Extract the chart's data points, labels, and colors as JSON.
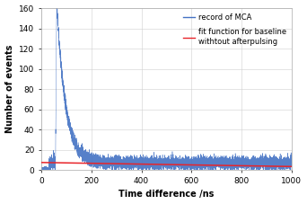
{
  "xlabel": "Time difference /ns",
  "ylabel": "Number of events",
  "xlim": [
    0,
    1000
  ],
  "ylim": [
    0,
    160
  ],
  "yticks": [
    0,
    20,
    40,
    60,
    80,
    100,
    120,
    140,
    160
  ],
  "xticks": [
    0,
    200,
    400,
    600,
    800,
    1000
  ],
  "blue_color": "#4472C4",
  "red_color": "#E8242A",
  "bg_color": "#FFFFFF",
  "grid_color": "#D0D0D0",
  "spike_x": 62,
  "spike_amp": 157,
  "decay_tau": 35,
  "noise_mean": 7.0,
  "noise_std": 3.2,
  "fit_y_start": 7.5,
  "fit_y_end": 3.5,
  "legend_blue": "record of MCA",
  "legend_red": "fit function for baseline\nwithtout afterpulsing",
  "font_size": 7,
  "tick_font_size": 6.5
}
